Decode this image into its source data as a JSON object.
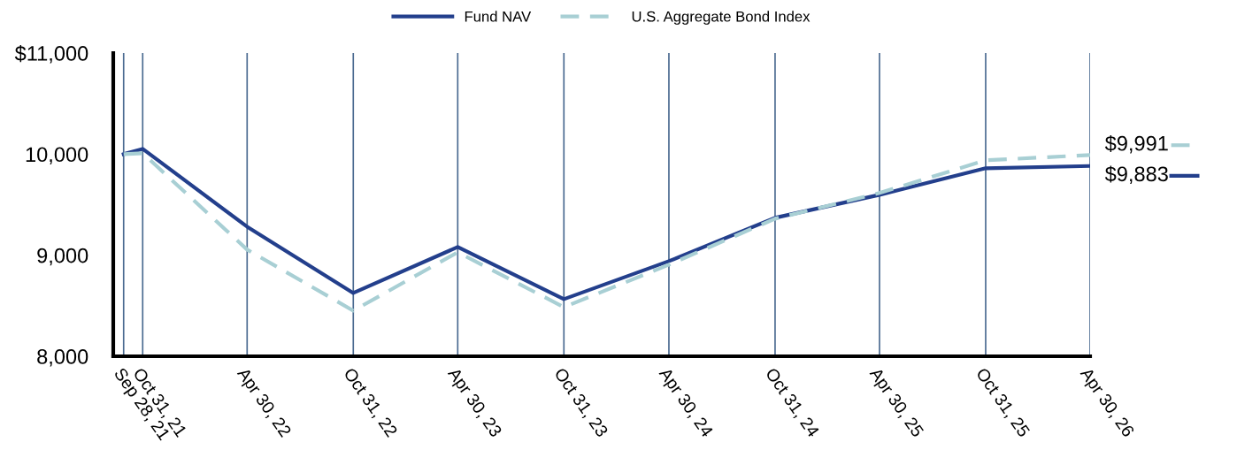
{
  "chart_data": {
    "type": "line",
    "x": [
      "2021-09-28",
      "2021-10-31",
      "2022-04-30",
      "2022-10-31",
      "2023-04-30",
      "2023-10-31",
      "2024-04-30",
      "2024-10-31",
      "2025-04-30",
      "2025-10-31",
      "2026-04-30"
    ],
    "series": [
      {
        "name": "Fund NAV",
        "color": "#233f8c",
        "line_style": "solid",
        "values": [
          10000,
          10052,
          9282,
          8626,
          9081,
          8565,
          8941,
          9370,
          9597,
          9860,
          9883
        ]
      },
      {
        "name": "U.S. Aggregate Bond Index",
        "color": "#a8cfd4",
        "line_style": "dashed",
        "values": [
          10000,
          10009,
          9055,
          8451,
          9029,
          8486,
          8906,
          9361,
          9615,
          9939,
          9991
        ]
      }
    ],
    "xlim": [
      "2021-09-10",
      "2026-04-30"
    ],
    "xticks": [
      {
        "value": "2021-09-28",
        "label": "Sep 28, 21"
      },
      {
        "value": "2021-10-31",
        "label": "Oct 31, 21"
      },
      {
        "value": "2022-04-30",
        "label": "Apr 30, 22"
      },
      {
        "value": "2022-10-31",
        "label": "Oct 31, 22"
      },
      {
        "value": "2023-04-30",
        "label": "Apr 30, 23"
      },
      {
        "value": "2023-10-31",
        "label": "Oct 31, 23"
      },
      {
        "value": "2024-04-30",
        "label": "Apr 30, 24"
      },
      {
        "value": "2024-10-31",
        "label": "Oct 31, 24"
      },
      {
        "value": "2025-04-30",
        "label": "Apr 30, 25"
      },
      {
        "value": "2025-10-31",
        "label": "Oct 31, 25"
      },
      {
        "value": "2026-04-30",
        "label": "Apr 30, 26"
      }
    ],
    "ylim": [
      8000,
      11000
    ],
    "yticks": [
      {
        "value": 8000,
        "label": "8,000"
      },
      {
        "value": 9000,
        "label": "9,000"
      },
      {
        "value": 10000,
        "label": "10,000"
      },
      {
        "value": 11000,
        "label": "$11,000"
      }
    ],
    "grid": "x",
    "legend": "top",
    "marker": "none",
    "annotations": [
      {
        "text": "$9,883",
        "x": "2026-04-30",
        "y": 9883
      },
      {
        "text": "$9,991",
        "x": "2026-04-30",
        "y": 9991
      }
    ]
  }
}
